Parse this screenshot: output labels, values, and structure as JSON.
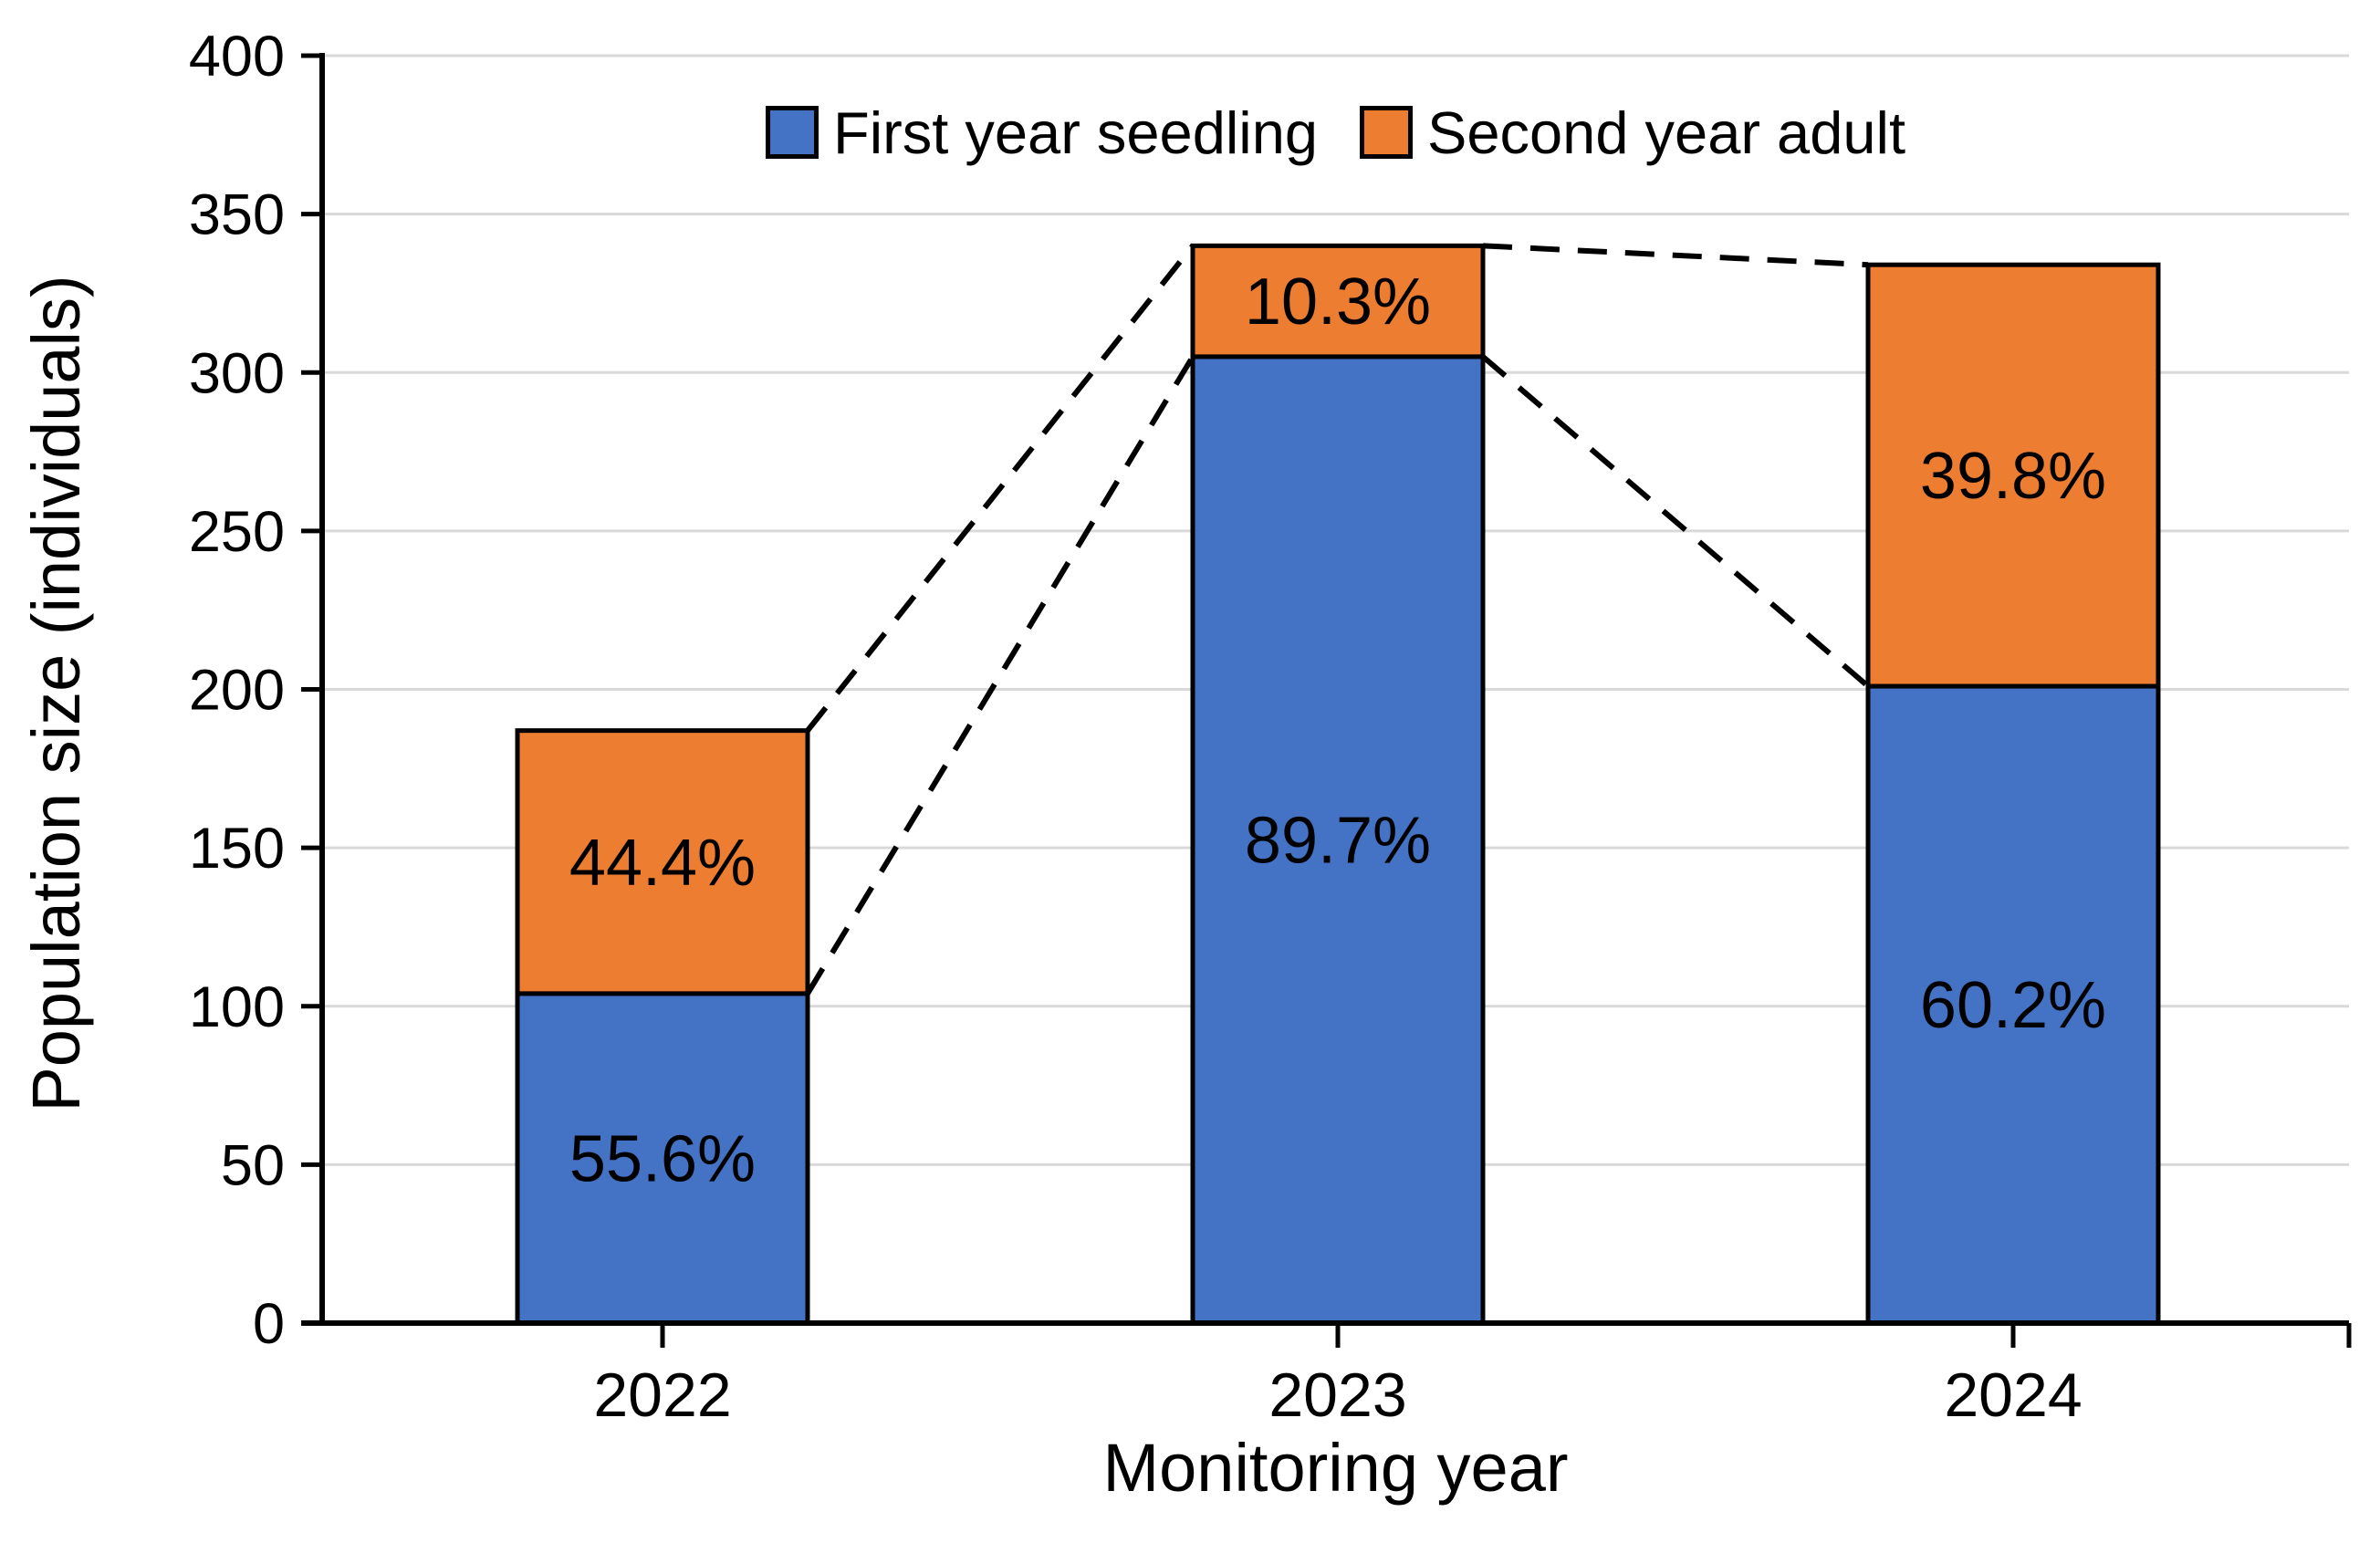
{
  "chart_data": {
    "type": "bar",
    "stacked": true,
    "title": "",
    "xlabel": "Monitoring year",
    "ylabel": "Population size (individuals)",
    "categories": [
      "2022",
      "2023",
      "2024"
    ],
    "series": [
      {
        "name": "First year seedling",
        "color": "#4472C4",
        "values": [
          104,
          305,
          201
        ],
        "pct_labels": [
          "55.6%",
          "89.7%",
          "60.2%"
        ]
      },
      {
        "name": "Second year adult",
        "color": "#ED7D31",
        "values": [
          83,
          35,
          133
        ],
        "pct_labels": [
          "44.4%",
          "10.3%",
          "39.8%"
        ]
      }
    ],
    "totals": [
      187,
      340,
      334
    ],
    "ylim": [
      0,
      400
    ],
    "ytick_step": 50,
    "yticks": [
      "0",
      "50",
      "100",
      "150",
      "200",
      "250",
      "300",
      "350",
      "400"
    ],
    "grid": true,
    "legend_position": "top-center",
    "connectors": [
      {
        "from": "2022",
        "to": "2023",
        "level": "stack-total"
      },
      {
        "from": "2022",
        "to": "2023",
        "level": "seedling-top"
      },
      {
        "from": "2023",
        "to": "2024",
        "level": "stack-total"
      },
      {
        "from": "2023",
        "to": "2024",
        "level": "seedling-top"
      }
    ],
    "connector_style": "black-dashed",
    "colors": {
      "grid": "#D9D9D9",
      "axis": "#000000",
      "bar_border": "#000000",
      "connector": "#000000",
      "text": "#000000",
      "background": "#FFFFFF"
    }
  }
}
